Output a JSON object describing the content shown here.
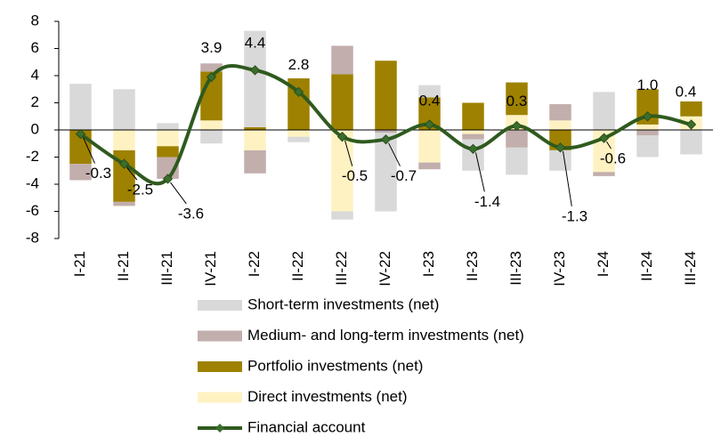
{
  "chart_data": {
    "type": "stacked-bar-line",
    "categories": [
      "I-21",
      "II-21",
      "III-21",
      "IV-21",
      "I-22",
      "II-22",
      "III-22",
      "IV-22",
      "I-23",
      "II-23",
      "III-23",
      "IV-23",
      "I-24",
      "II-24",
      "III-24"
    ],
    "series": [
      {
        "name": "Short-term investments (net)",
        "color": "#d9d9d9",
        "type": "bar",
        "stack_order": 4,
        "values": [
          3.4,
          3.0,
          0.5,
          -1.0,
          7.1,
          -0.4,
          -0.6,
          -5.8,
          0.9,
          -2.3,
          -2.0,
          -1.5,
          2.8,
          -1.6,
          -1.8
        ]
      },
      {
        "name": "Medium- and long-term investments (net)",
        "color": "#c2aeac",
        "type": "bar",
        "stack_order": 3,
        "values": [
          -1.2,
          -0.3,
          -1.6,
          0.6,
          -1.7,
          0,
          2.1,
          -0.2,
          -0.5,
          -0.4,
          -1.3,
          1.2,
          -0.3,
          -0.4,
          0
        ]
      },
      {
        "name": "Portfolio investments (net)",
        "color": "#9e8100",
        "type": "bar",
        "stack_order": 2,
        "values": [
          -2.5,
          -3.8,
          -0.8,
          3.6,
          0.2,
          3.8,
          4.1,
          5.1,
          2.4,
          2.0,
          2.4,
          -1.5,
          0,
          2.6,
          1.1
        ]
      },
      {
        "name": "Direct investments (net)",
        "color": "#fff2c2",
        "type": "bar",
        "stack_order": 1,
        "values": [
          0,
          -1.5,
          -1.2,
          0.7,
          -1.5,
          -0.5,
          -6.0,
          0,
          -2.4,
          -0.3,
          1.1,
          0.7,
          -3.1,
          0.4,
          1.0
        ]
      },
      {
        "name": "Financial account",
        "color": "#2f5a1f",
        "type": "line",
        "values": [
          -0.3,
          -2.5,
          -3.6,
          3.9,
          4.4,
          2.8,
          -0.5,
          -0.7,
          0.4,
          -1.4,
          0.3,
          -1.3,
          -0.6,
          1.0,
          0.4
        ],
        "value_labels": [
          "-0.3",
          "-2.5",
          "-3.6",
          "3.9",
          "4.4",
          "2.8",
          "-0.5",
          "-0.7",
          "0.4",
          "-1.4",
          "0.3",
          "-1.3",
          "-0.6",
          "1.0",
          "0.4"
        ]
      }
    ],
    "ylim": [
      -8,
      8
    ],
    "yticks": [
      -8,
      -6,
      -4,
      -2,
      0,
      2,
      4,
      6,
      8
    ],
    "grid": false,
    "legend": "bottom"
  }
}
